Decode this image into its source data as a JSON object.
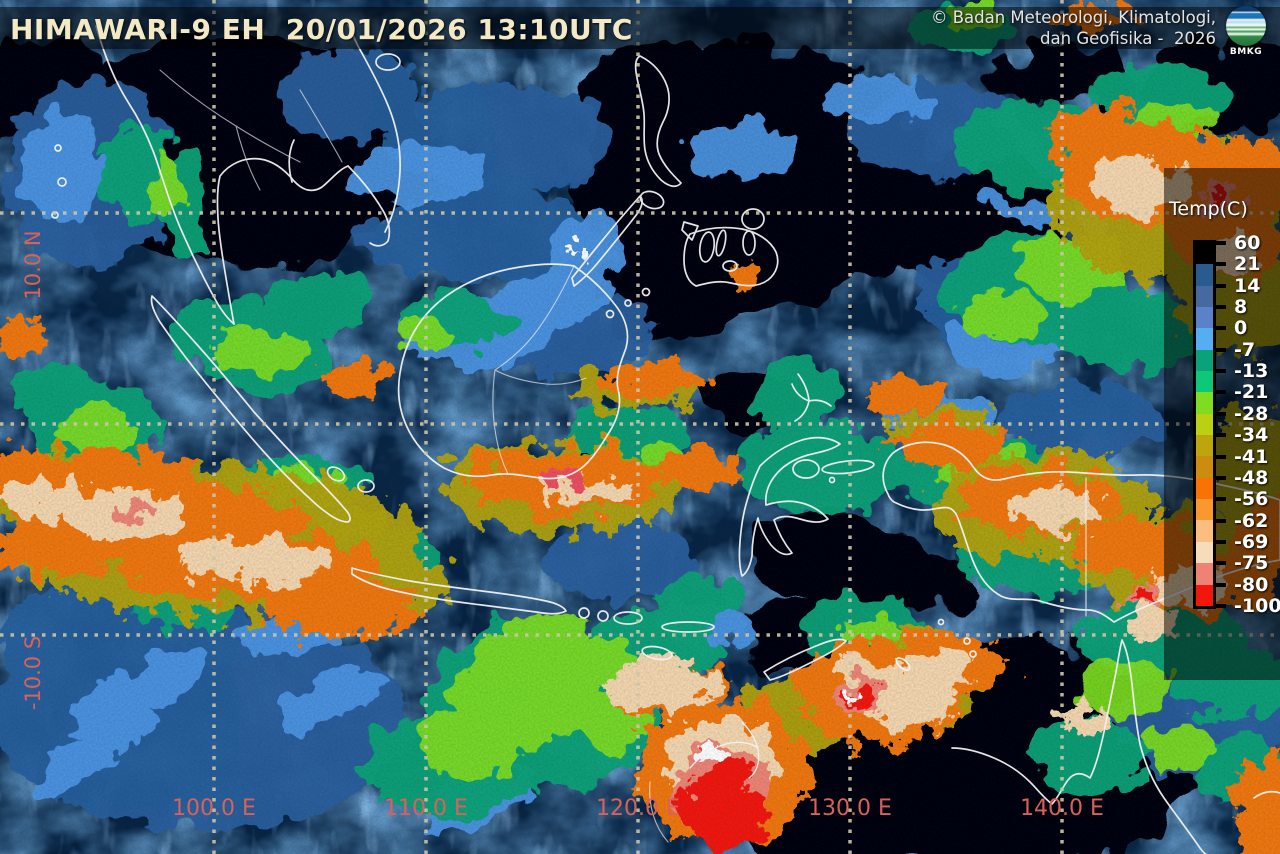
{
  "header": {
    "title": "HIMAWARI-9 EH  20/01/2026 13:10UTC",
    "credit_line1": "© Badan Meteorologi, Klimatologi,",
    "credit_line2": "dan Geofisika -  2026",
    "logo_label": "BMKG"
  },
  "legend": {
    "title": "Temp(C)",
    "tick_labels": [
      "60",
      "21",
      "14",
      "8",
      "0",
      "-7",
      "-13",
      "-21",
      "-28",
      "-34",
      "-41",
      "-48",
      "-56",
      "-62",
      "-69",
      "-75",
      "-80",
      "-100"
    ],
    "segment_colors": [
      "#000000",
      "#2a5b8f",
      "#46699e",
      "#5b82c8",
      "#55aef2",
      "#0ba17b",
      "#0cc878",
      "#7edd20",
      "#b9d014",
      "#bda60d",
      "#cb8c10",
      "#f97205",
      "#f8982e",
      "#fbbe80",
      "#f6dcba",
      "#ef8373",
      "#f3160c"
    ]
  },
  "grid": {
    "longitude_labels": [
      "100.0 E",
      "110.0 E",
      "120.0 E",
      "130.0 E",
      "140.0 E"
    ],
    "latitude_labels": [
      "10.0 N",
      "-10.0 S"
    ]
  },
  "colors": {
    "coordinate_label": "#d9615a",
    "title_text": "#f3e9c4",
    "credit_text": "#e4e4e4",
    "legend_text": "#ffffff",
    "gridline": "#cdc5a9"
  }
}
